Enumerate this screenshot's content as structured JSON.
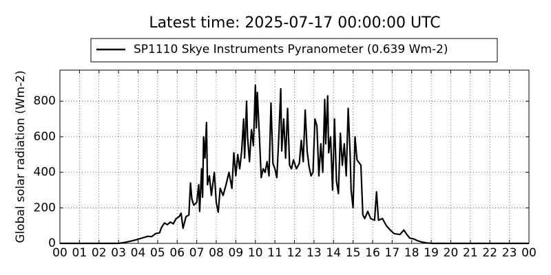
{
  "chart_data": {
    "type": "line",
    "title": "Latest time: 2025-07-17 00:00:00 UTC",
    "ylabel": "Global solar radiation (Wm-2)",
    "xlim": [
      0,
      24
    ],
    "ylim": [
      0,
      975
    ],
    "xticks": [
      {
        "value": 0,
        "label": "00"
      },
      {
        "value": 1,
        "label": "01"
      },
      {
        "value": 2,
        "label": "02"
      },
      {
        "value": 3,
        "label": "03"
      },
      {
        "value": 4,
        "label": "04"
      },
      {
        "value": 5,
        "label": "05"
      },
      {
        "value": 6,
        "label": "06"
      },
      {
        "value": 7,
        "label": "07"
      },
      {
        "value": 8,
        "label": "08"
      },
      {
        "value": 9,
        "label": "09"
      },
      {
        "value": 10,
        "label": "10"
      },
      {
        "value": 11,
        "label": "11"
      },
      {
        "value": 12,
        "label": "12"
      },
      {
        "value": 13,
        "label": "13"
      },
      {
        "value": 14,
        "label": "14"
      },
      {
        "value": 15,
        "label": "15"
      },
      {
        "value": 16,
        "label": "16"
      },
      {
        "value": 17,
        "label": "17"
      },
      {
        "value": 18,
        "label": "18"
      },
      {
        "value": 19,
        "label": "19"
      },
      {
        "value": 20,
        "label": "20"
      },
      {
        "value": 21,
        "label": "21"
      },
      {
        "value": 22,
        "label": "22"
      },
      {
        "value": 23,
        "label": "23"
      },
      {
        "value": 24,
        "label": "00"
      }
    ],
    "yticks": [
      0,
      200,
      400,
      600,
      800
    ],
    "grid": true,
    "legend": "top",
    "x": [
      0,
      3,
      3.3,
      3.6,
      3.9,
      4.2,
      4.5,
      4.7,
      4.9,
      5.1,
      5.2,
      5.35,
      5.5,
      5.65,
      5.8,
      5.95,
      6.1,
      6.2,
      6.3,
      6.45,
      6.6,
      6.68,
      6.75,
      6.85,
      7,
      7.1,
      7.15,
      7.25,
      7.3,
      7.35,
      7.42,
      7.5,
      7.55,
      7.65,
      7.75,
      7.9,
      8,
      8.1,
      8.2,
      8.35,
      8.5,
      8.65,
      8.8,
      8.9,
      9,
      9.1,
      9.2,
      9.3,
      9.4,
      9.45,
      9.55,
      9.6,
      9.7,
      9.8,
      9.9,
      10,
      10.05,
      10.1,
      10.2,
      10.3,
      10.4,
      10.5,
      10.6,
      10.7,
      10.8,
      10.9,
      11,
      11.1,
      11.2,
      11.3,
      11.35,
      11.45,
      11.55,
      11.65,
      11.75,
      11.85,
      11.95,
      12.1,
      12.25,
      12.35,
      12.45,
      12.55,
      12.65,
      12.75,
      12.85,
      12.95,
      13.05,
      13.15,
      13.25,
      13.35,
      13.45,
      13.55,
      13.6,
      13.7,
      13.75,
      13.85,
      13.95,
      14.05,
      14.15,
      14.25,
      14.35,
      14.45,
      14.55,
      14.65,
      14.75,
      14.85,
      14.9,
      15,
      15.1,
      15.2,
      15.4,
      15.5,
      15.6,
      15.75,
      15.9,
      16.1,
      16.2,
      16.3,
      16.5,
      16.7,
      16.9,
      17.1,
      17.4,
      17.6,
      17.75,
      17.9,
      18.1,
      18.3,
      18.5,
      18.8,
      19.1,
      24
    ],
    "series": [
      {
        "name": "SP1110 Skye Instruments Pyranometer (0.639 Wm-2)",
        "color": "#000000",
        "values": [
          0,
          0,
          5,
          12,
          20,
          30,
          40,
          38,
          55,
          60,
          90,
          115,
          105,
          120,
          110,
          140,
          150,
          170,
          85,
          150,
          160,
          340,
          250,
          215,
          230,
          330,
          180,
          420,
          260,
          600,
          480,
          680,
          330,
          380,
          270,
          400,
          230,
          175,
          310,
          270,
          330,
          400,
          310,
          510,
          380,
          500,
          420,
          520,
          700,
          480,
          800,
          600,
          460,
          640,
          550,
          890,
          650,
          850,
          620,
          370,
          420,
          400,
          460,
          380,
          790,
          450,
          420,
          370,
          600,
          870,
          520,
          700,
          480,
          760,
          440,
          420,
          470,
          420,
          450,
          580,
          460,
          750,
          520,
          430,
          380,
          400,
          700,
          660,
          380,
          560,
          400,
          810,
          560,
          830,
          510,
          600,
          300,
          700,
          350,
          280,
          620,
          440,
          560,
          380,
          760,
          500,
          300,
          200,
          600,
          470,
          440,
          160,
          140,
          180,
          140,
          130,
          290,
          130,
          140,
          100,
          75,
          55,
          50,
          75,
          50,
          30,
          25,
          15,
          8,
          2,
          0,
          0
        ]
      }
    ]
  }
}
